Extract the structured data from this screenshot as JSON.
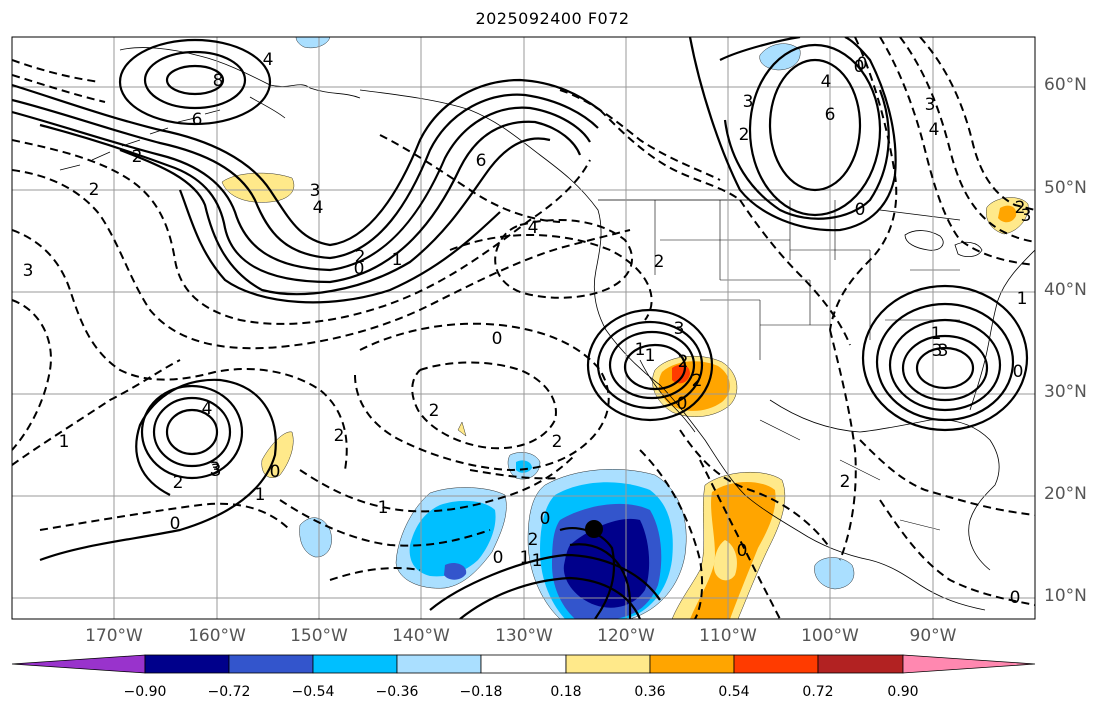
{
  "title": "2025092400 F072",
  "latitude_labels": [
    "60°N",
    "50°N",
    "40°N",
    "30°N",
    "20°N",
    "10°N"
  ],
  "longitude_labels": [
    "170°W",
    "160°W",
    "150°W",
    "140°W",
    "130°W",
    "120°W",
    "110°W",
    "100°W",
    "90°W"
  ],
  "colorbar": {
    "tick_labels": [
      "−0.90",
      "−0.72",
      "−0.54",
      "−0.36",
      "−0.18",
      "0.18",
      "0.36",
      "0.54",
      "0.72",
      "0.90"
    ],
    "colors": [
      "#9933cc",
      "#00008b",
      "#3355cc",
      "#00bfff",
      "#aadfff",
      "#ffffff",
      "#ffe98a",
      "#ffa500",
      "#ff3b00",
      "#b22222",
      "#ff88b0"
    ]
  },
  "contour_labels": [
    "8",
    "4",
    "6",
    "6",
    "2",
    "3",
    "4",
    "0",
    "2",
    "1",
    "4",
    "2",
    "0",
    "3",
    "2",
    "4",
    "6",
    "4",
    "2",
    "0",
    "3",
    "2",
    "1",
    "3",
    "4",
    "3",
    "2",
    "1",
    "2",
    "2",
    "0",
    "3",
    "0",
    "1",
    "2",
    "2",
    "0",
    "1",
    "3",
    "0",
    "1",
    "0",
    "1",
    "0",
    "2",
    "0",
    "0",
    "3",
    "3",
    "0",
    "0",
    "1",
    "3",
    "2",
    "2",
    "1",
    "1"
  ]
}
